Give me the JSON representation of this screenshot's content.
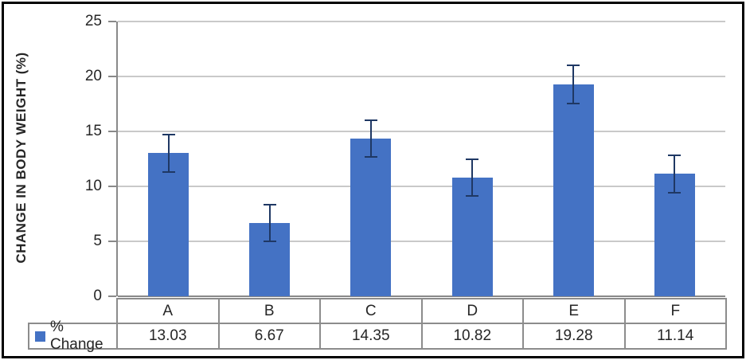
{
  "chart_data": {
    "type": "bar",
    "title": "",
    "xlabel": "",
    "ylabel": "CHANGE IN BODY WEIGHT (%)",
    "categories": [
      "A",
      "B",
      "C",
      "D",
      "E",
      "F"
    ],
    "series": [
      {
        "name": "% Change",
        "values": [
          13.03,
          6.67,
          14.35,
          10.82,
          19.28,
          11.14
        ],
        "errors": [
          1.7,
          1.7,
          1.7,
          1.67,
          1.75,
          1.72
        ]
      }
    ],
    "ylim": [
      0,
      25
    ],
    "yticks": [
      0,
      5,
      10,
      15,
      20,
      25
    ],
    "grid": true,
    "legend_position": "table-bottom-left",
    "colors": {
      "bar": "#4472C4",
      "error_bar": "#1F3864",
      "gridline": "#C9C9C9",
      "axis": "#898989",
      "table_border": "#8C8C8C",
      "text": "#262626",
      "outer_border": "#000000"
    }
  },
  "table": {
    "legend_label": "% Change",
    "categories": [
      "A",
      "B",
      "C",
      "D",
      "E",
      "F"
    ],
    "values": [
      "13.03",
      "6.67",
      "14.35",
      "10.82",
      "19.28",
      "11.14"
    ]
  }
}
